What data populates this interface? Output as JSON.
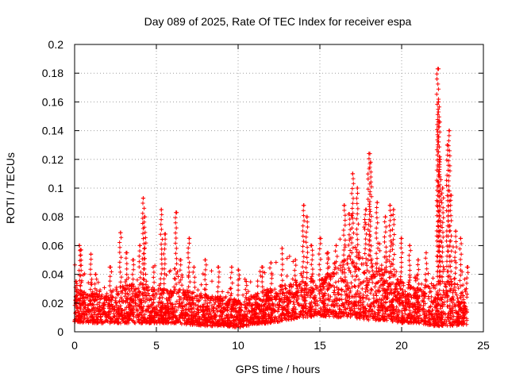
{
  "chart_data": {
    "type": "scatter",
    "title": "Day 089 of 2025, Rate Of TEC Index for receiver espa",
    "xlabel": "GPS time / hours",
    "ylabel": "ROTI / TECUs",
    "xlim": [
      0,
      25
    ],
    "ylim": [
      0,
      0.2
    ],
    "xticks": [
      0,
      5,
      10,
      15,
      20,
      25
    ],
    "xtick_labels": [
      "0",
      "5",
      "10",
      "15",
      "20",
      "25"
    ],
    "yticks": [
      0,
      0.02,
      0.04,
      0.06,
      0.08,
      0.1,
      0.12,
      0.14,
      0.16,
      0.18,
      0.2
    ],
    "ytick_labels": [
      "0",
      "0.02",
      "0.04",
      "0.06",
      "0.08",
      "0.1",
      "0.12",
      "0.14",
      "0.16",
      "0.18",
      "0.2"
    ],
    "grid": true,
    "marker": "+",
    "color": "#ff0000",
    "data_x_range": [
      0,
      24
    ],
    "series": [
      {
        "name": "ROTI",
        "x": [
          0.1,
          0.3,
          0.4,
          1.0,
          1.3,
          2.2,
          2.8,
          3.2,
          3.6,
          4.0,
          4.2,
          4.3,
          4.8,
          5.3,
          5.5,
          6.2,
          6.5,
          7.0,
          7.3,
          8.0,
          8.8,
          9.6,
          10.0,
          10.5,
          11.5,
          12.0,
          12.7,
          13.5,
          14.0,
          14.2,
          14.5,
          15.0,
          15.5,
          16.0,
          16.5,
          16.8,
          17.0,
          17.3,
          17.8,
          18.0,
          18.1,
          18.5,
          19.0,
          19.3,
          19.5,
          20.0,
          20.5,
          21.0,
          21.5,
          22.2,
          22.25,
          22.3,
          22.35,
          22.5,
          22.8,
          22.9,
          23.0,
          23.3,
          23.6,
          24.0
        ],
        "y": [
          0.035,
          0.06,
          0.057,
          0.054,
          0.04,
          0.045,
          0.069,
          0.055,
          0.05,
          0.06,
          0.093,
          0.08,
          0.045,
          0.085,
          0.068,
          0.083,
          0.05,
          0.065,
          0.045,
          0.05,
          0.045,
          0.045,
          0.043,
          0.035,
          0.045,
          0.048,
          0.058,
          0.05,
          0.088,
          0.08,
          0.06,
          0.065,
          0.055,
          0.06,
          0.088,
          0.082,
          0.11,
          0.1,
          0.085,
          0.124,
          0.118,
          0.09,
          0.08,
          0.088,
          0.085,
          0.065,
          0.06,
          0.05,
          0.055,
          0.183,
          0.16,
          0.146,
          0.12,
          0.1,
          0.13,
          0.14,
          0.095,
          0.07,
          0.065,
          0.045
        ]
      }
    ],
    "density": {
      "description": "Dense band of points along the whole day",
      "x": [
        0,
        1,
        2,
        3,
        4,
        5,
        6,
        7,
        8,
        9,
        10,
        11,
        12,
        13,
        14,
        15,
        16,
        17,
        18,
        19,
        20,
        21,
        22,
        23,
        24
      ],
      "base_min": [
        0.007,
        0.006,
        0.006,
        0.006,
        0.006,
        0.006,
        0.006,
        0.005,
        0.004,
        0.004,
        0.003,
        0.005,
        0.006,
        0.008,
        0.01,
        0.011,
        0.01,
        0.01,
        0.008,
        0.008,
        0.006,
        0.006,
        0.004,
        0.004,
        0.005
      ],
      "base_max": [
        0.03,
        0.026,
        0.028,
        0.032,
        0.034,
        0.03,
        0.03,
        0.028,
        0.026,
        0.024,
        0.022,
        0.026,
        0.03,
        0.033,
        0.038,
        0.036,
        0.045,
        0.055,
        0.05,
        0.045,
        0.035,
        0.03,
        0.035,
        0.035,
        0.03
      ]
    }
  }
}
